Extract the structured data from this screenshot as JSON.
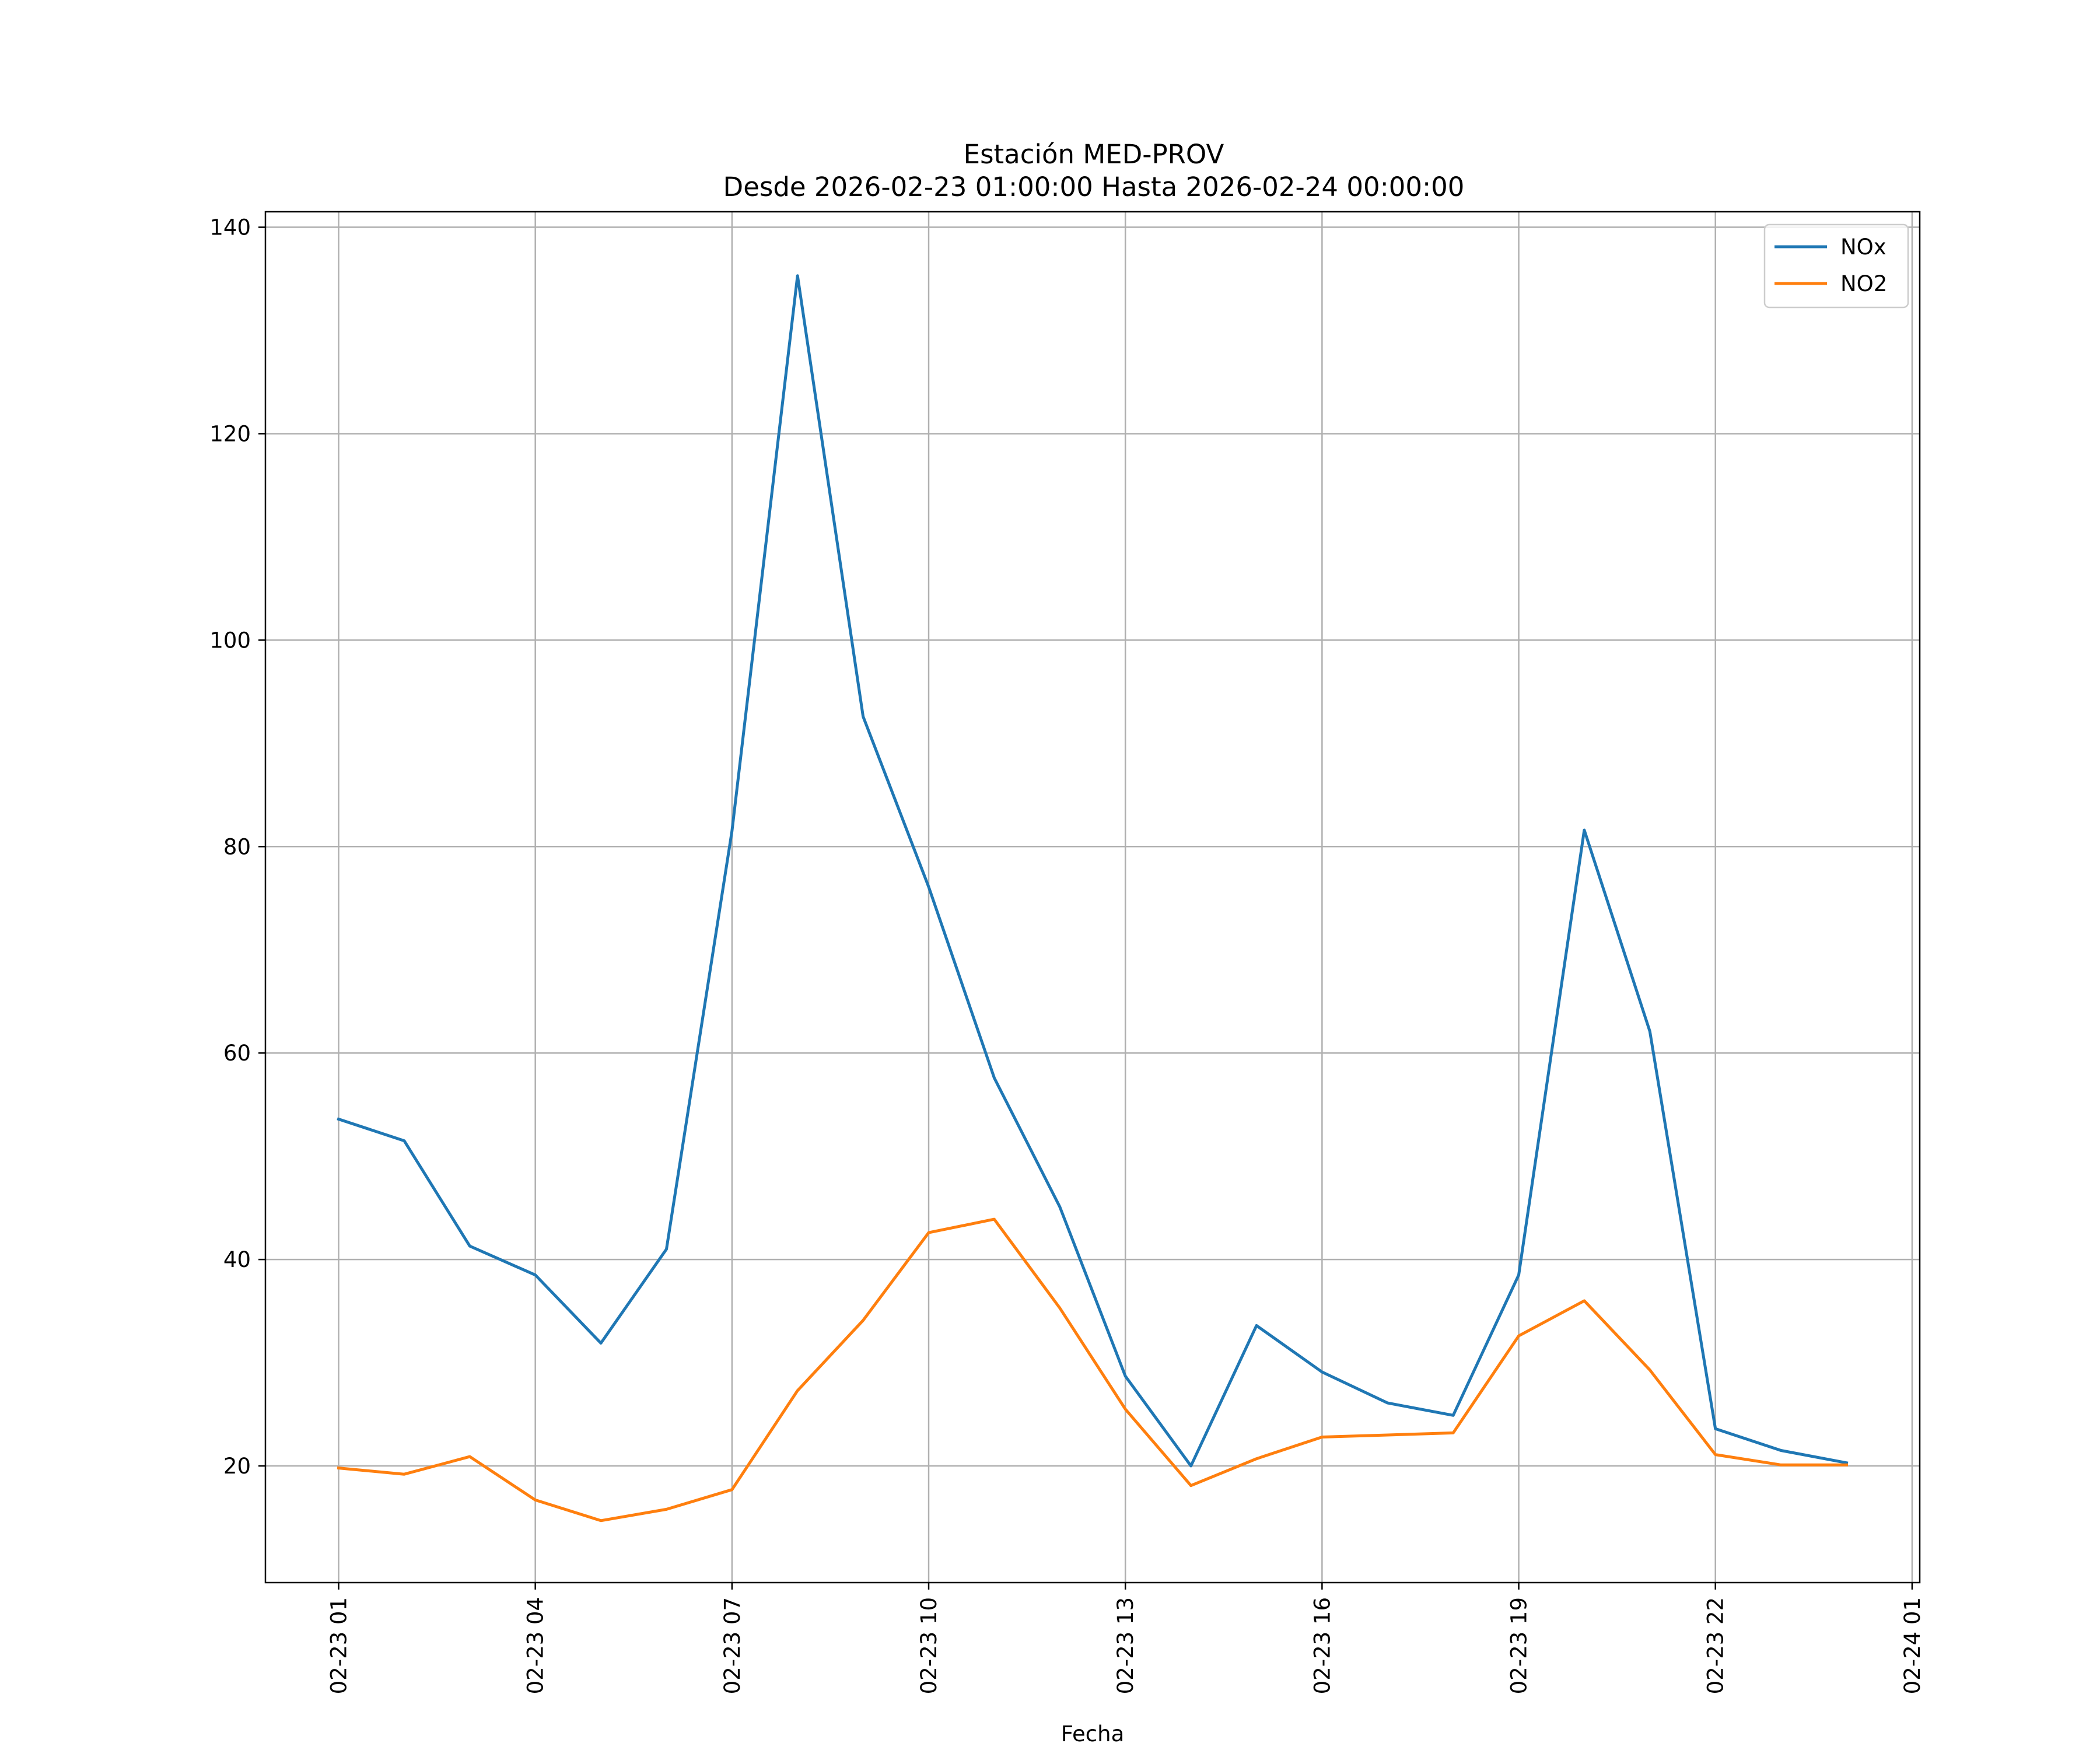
{
  "chart_data": {
    "type": "line",
    "title": "Estación MED-PROV",
    "subtitle": "Desde 2026-02-23 01:00:00 Hasta 2026-02-24 00:00:00",
    "xlabel": "Fecha",
    "ylabel": "",
    "x": [
      "02-23 01",
      "02-23 02",
      "02-23 03",
      "02-23 04",
      "02-23 05",
      "02-23 06",
      "02-23 07",
      "02-23 08",
      "02-23 09",
      "02-23 10",
      "02-23 11",
      "02-23 12",
      "02-23 13",
      "02-23 14",
      "02-23 15",
      "02-23 16",
      "02-23 17",
      "02-23 18",
      "02-23 19",
      "02-23 20",
      "02-23 21",
      "02-23 22",
      "02-23 23",
      "02-24 00"
    ],
    "xticks": [
      "02-23 01",
      "02-23 04",
      "02-23 07",
      "02-23 10",
      "02-23 13",
      "02-23 16",
      "02-23 19",
      "02-23 22",
      "02-24 01"
    ],
    "xlim": [
      "2026-02-22 23:53",
      "2026-02-24 01:07"
    ],
    "yticks": [
      20,
      40,
      60,
      80,
      100,
      120,
      140
    ],
    "ylim": [
      8.7,
      141.5
    ],
    "grid": true,
    "legend_position": "top-right",
    "series": [
      {
        "name": "NOx",
        "color": "#1f77b4",
        "values": [
          53.6,
          51.5,
          41.3,
          38.5,
          31.9,
          41.0,
          81.5,
          135.3,
          92.6,
          76.1,
          57.6,
          45.1,
          28.7,
          20.0,
          33.6,
          29.1,
          26.1,
          24.9,
          38.5,
          81.6,
          62.1,
          23.6,
          21.5,
          20.3
        ]
      },
      {
        "name": "NO2",
        "color": "#ff7f0e",
        "values": [
          19.8,
          19.2,
          20.9,
          16.7,
          14.7,
          15.8,
          17.7,
          27.3,
          34.1,
          42.6,
          43.9,
          35.3,
          25.5,
          18.1,
          20.7,
          22.8,
          23.0,
          23.2,
          32.6,
          36.0,
          29.3,
          21.1,
          20.1,
          20.1
        ]
      }
    ]
  }
}
